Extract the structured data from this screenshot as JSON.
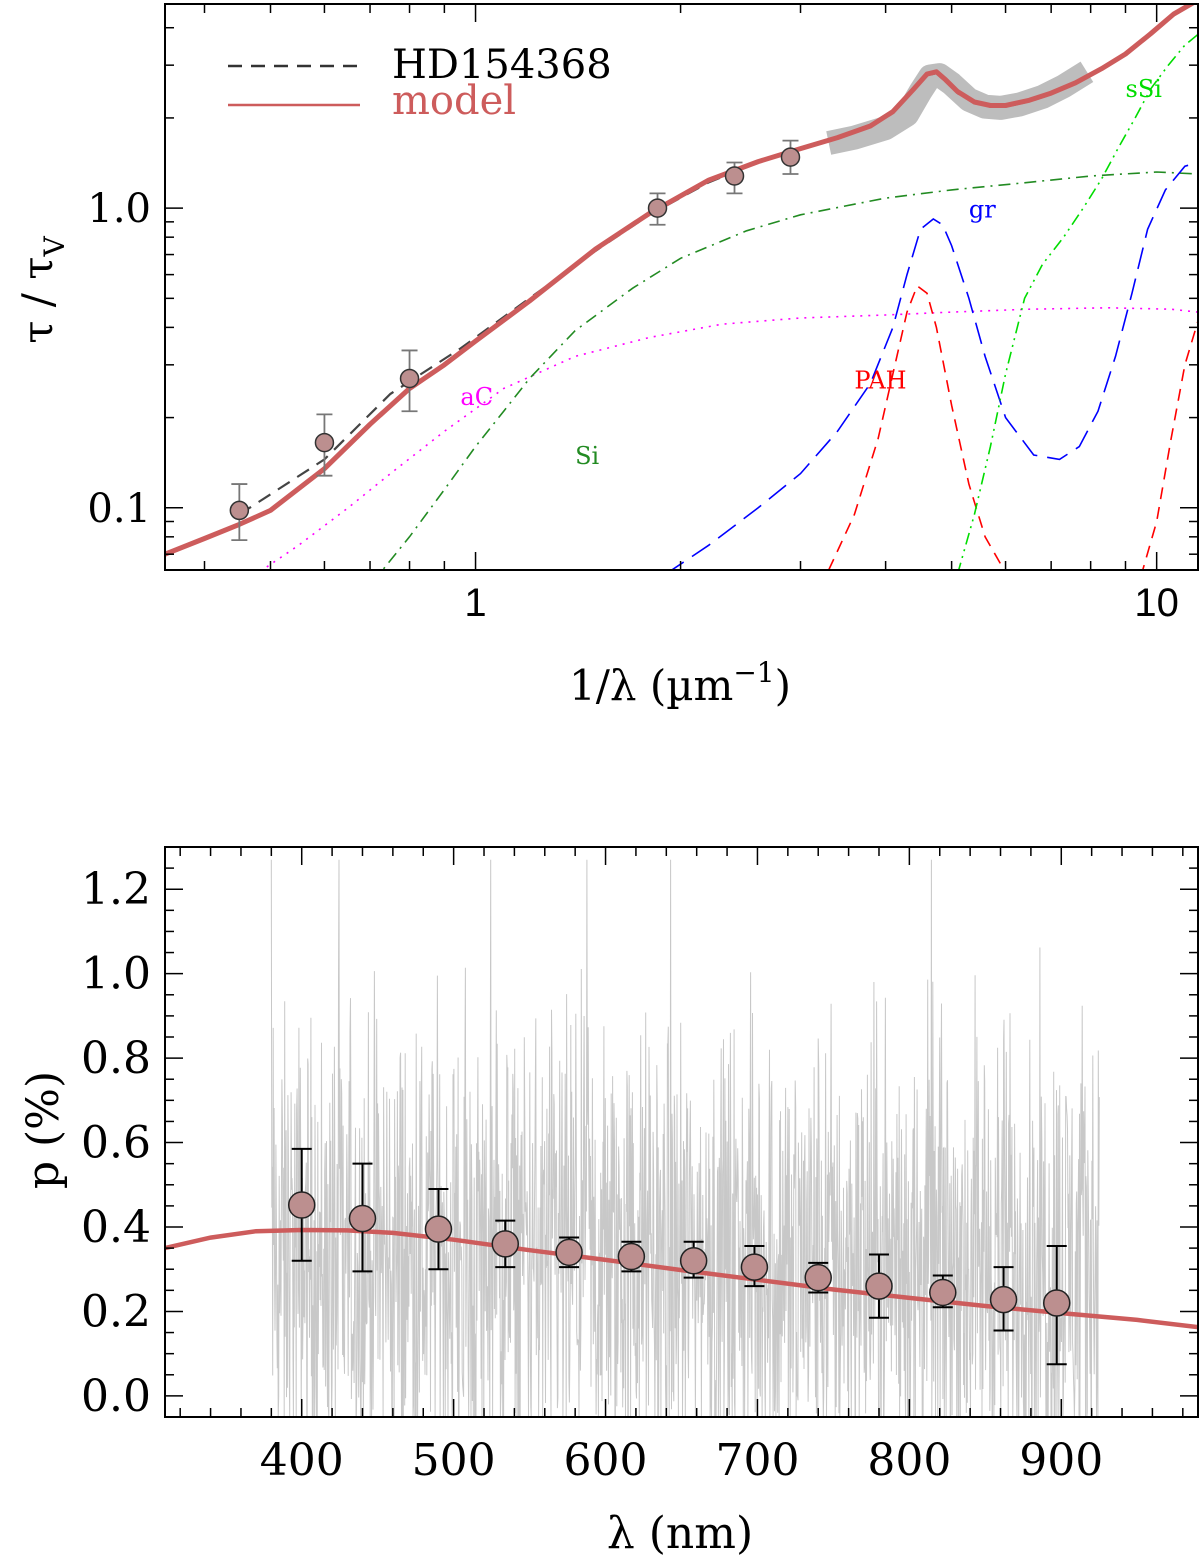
{
  "chart_data": [
    {
      "type": "line",
      "id": "extinction",
      "xscale": "log",
      "yscale": "log",
      "xlim": [
        0.35,
        11.5
      ],
      "ylim": [
        0.062,
        4.8
      ],
      "xlabel_main": "1/λ (µm",
      "xlabel_sup": "−1",
      "xlabel_end": ")",
      "ylabel_main": "τ / τ",
      "ylabel_sub": "V",
      "x_ticks": [
        {
          "value": 1,
          "label": "1"
        },
        {
          "value": 10,
          "label": "10"
        }
      ],
      "y_ticks": [
        {
          "value": 0.1,
          "label": "0.1"
        },
        {
          "value": 1.0,
          "label": "1.0"
        }
      ],
      "legend": {
        "position": "top-left",
        "entries": [
          {
            "label": "HD154368",
            "style": "dashed",
            "color": "#333333"
          },
          {
            "label": "model",
            "style": "solid",
            "color": "#cd5c5c"
          }
        ]
      },
      "observed_band": {
        "color": "#bdbdbd",
        "x": [
          3.3,
          3.6,
          4.0,
          4.3,
          4.5,
          4.65,
          4.8,
          5.0,
          5.3,
          5.6,
          5.9,
          6.3,
          6.8,
          7.3,
          7.9
        ],
        "y": [
          1.65,
          1.72,
          1.85,
          2.05,
          2.45,
          2.75,
          2.78,
          2.6,
          2.3,
          2.18,
          2.16,
          2.22,
          2.35,
          2.55,
          2.85
        ]
      },
      "observed_curve": {
        "label": "HD154368",
        "x": [
          0.45,
          0.6,
          0.75,
          0.95,
          1.2,
          1.5,
          1.8,
          2.2,
          2.6,
          3.0,
          3.4,
          3.8,
          4.1,
          4.4,
          4.6,
          4.75,
          4.9,
          5.1,
          5.4,
          5.7,
          6.0,
          6.5,
          7.0,
          7.6,
          8.3,
          9.0,
          9.8,
          10.6,
          11.5
        ],
        "y": [
          0.095,
          0.145,
          0.24,
          0.34,
          0.5,
          0.72,
          0.95,
          1.22,
          1.42,
          1.58,
          1.73,
          1.9,
          2.12,
          2.52,
          2.78,
          2.82,
          2.65,
          2.42,
          2.24,
          2.18,
          2.18,
          2.27,
          2.4,
          2.6,
          2.9,
          3.25,
          3.8,
          4.4,
          4.9
        ]
      },
      "model_curve": {
        "label": "model",
        "x": [
          0.35,
          0.4,
          0.45,
          0.5,
          0.6,
          0.7,
          0.8,
          0.9,
          1.0,
          1.2,
          1.5,
          1.8,
          2.2,
          2.6,
          3.0,
          3.4,
          3.8,
          4.1,
          4.4,
          4.6,
          4.75,
          4.9,
          5.1,
          5.4,
          5.7,
          6.0,
          6.5,
          7.0,
          7.6,
          8.3,
          9.0,
          9.8,
          10.6,
          11.5
        ],
        "y": [
          0.07,
          0.079,
          0.088,
          0.098,
          0.135,
          0.19,
          0.25,
          0.3,
          0.36,
          0.49,
          0.73,
          0.96,
          1.24,
          1.43,
          1.58,
          1.72,
          1.88,
          2.1,
          2.5,
          2.8,
          2.85,
          2.68,
          2.45,
          2.26,
          2.2,
          2.2,
          2.29,
          2.42,
          2.62,
          2.92,
          3.27,
          3.82,
          4.45,
          4.95
        ]
      },
      "data_points": {
        "x": [
          0.45,
          0.6,
          0.8,
          1.85,
          2.4,
          2.9
        ],
        "y": [
          0.098,
          0.165,
          0.27,
          1.0,
          1.28,
          1.48
        ],
        "err_low": [
          0.078,
          0.128,
          0.21,
          0.88,
          1.12,
          1.3
        ],
        "err_high": [
          0.12,
          0.205,
          0.335,
          1.12,
          1.42,
          1.68
        ]
      },
      "components": [
        {
          "name": "aC",
          "label": "aC",
          "color": "#ff00ff",
          "style": "dotted",
          "x": [
            0.35,
            0.45,
            0.55,
            0.65,
            0.75,
            0.9,
            1.1,
            1.4,
            1.8,
            2.3,
            3.0,
            4.0,
            5.0,
            6.5,
            8.5,
            10.5,
            11.5
          ],
          "y": [
            0.045,
            0.055,
            0.075,
            0.1,
            0.13,
            0.18,
            0.25,
            0.32,
            0.37,
            0.41,
            0.43,
            0.44,
            0.45,
            0.46,
            0.465,
            0.46,
            0.45
          ],
          "label_pos": [
            0.95,
            0.22
          ]
        },
        {
          "name": "Si",
          "label": "Si",
          "color": "#228b22",
          "style": "dashdot",
          "x": [
            0.6,
            0.7,
            0.8,
            0.9,
            1.0,
            1.1,
            1.2,
            1.4,
            1.7,
            2.0,
            2.5,
            3.0,
            4.0,
            5.0,
            6.5,
            8.0,
            10.0,
            11.5
          ],
          "y": [
            0.035,
            0.055,
            0.08,
            0.115,
            0.16,
            0.21,
            0.27,
            0.39,
            0.54,
            0.68,
            0.84,
            0.95,
            1.08,
            1.15,
            1.22,
            1.28,
            1.32,
            1.3
          ],
          "label_pos": [
            1.4,
            0.14
          ]
        },
        {
          "name": "gr",
          "label": "gr",
          "color": "#0000ff",
          "style": "longdash",
          "x": [
            1.9,
            2.2,
            2.6,
            3.0,
            3.4,
            3.8,
            4.1,
            4.3,
            4.5,
            4.7,
            4.85,
            5.0,
            5.3,
            5.6,
            6.0,
            6.6,
            7.2,
            7.7,
            8.2,
            8.7,
            9.2,
            9.7,
            10.3,
            11.0,
            11.5
          ],
          "y": [
            0.06,
            0.075,
            0.1,
            0.13,
            0.18,
            0.26,
            0.4,
            0.6,
            0.85,
            0.92,
            0.88,
            0.75,
            0.5,
            0.32,
            0.2,
            0.15,
            0.145,
            0.16,
            0.21,
            0.32,
            0.52,
            0.85,
            1.15,
            1.38,
            1.42
          ],
          "label_pos": [
            5.3,
            0.93
          ]
        },
        {
          "name": "PAH",
          "label": "PAH",
          "color": "#ff0000",
          "style": "dashed",
          "x": [
            3.3,
            3.6,
            3.9,
            4.1,
            4.3,
            4.45,
            4.6,
            4.75,
            5.0,
            5.3,
            5.6,
            5.9,
            6.2,
            6.5,
            7.0,
            8.0,
            9.0,
            9.5,
            10.0,
            10.5,
            11.0,
            11.5
          ],
          "y": [
            0.062,
            0.095,
            0.17,
            0.28,
            0.45,
            0.55,
            0.52,
            0.4,
            0.22,
            0.12,
            0.08,
            0.065,
            0.055,
            0.05,
            0.05,
            0.05,
            0.05,
            0.06,
            0.09,
            0.17,
            0.3,
            0.42
          ],
          "label_pos": [
            3.6,
            0.25
          ]
        },
        {
          "name": "sSi",
          "label": "sSi",
          "color": "#00dd00",
          "style": "dashdotdot",
          "x": [
            5.1,
            5.4,
            5.7,
            6.0,
            6.4,
            6.8,
            7.3,
            7.8,
            8.3,
            8.8,
            9.3,
            9.8,
            10.4,
            11.0,
            11.5
          ],
          "y": [
            0.06,
            0.095,
            0.16,
            0.28,
            0.5,
            0.65,
            0.8,
            1.0,
            1.25,
            1.6,
            2.0,
            2.5,
            3.0,
            3.5,
            3.8
          ],
          "label_pos": [
            9.0,
            2.35
          ]
        }
      ]
    },
    {
      "type": "scatter",
      "id": "polarization",
      "xlim": [
        310,
        990
      ],
      "ylim": [
        -0.05,
        1.3
      ],
      "xlabel": "λ   (nm)",
      "ylabel": "p (%)",
      "x_ticks": [
        {
          "value": 400,
          "label": "400"
        },
        {
          "value": 500,
          "label": "500"
        },
        {
          "value": 600,
          "label": "600"
        },
        {
          "value": 700,
          "label": "700"
        },
        {
          "value": 800,
          "label": "800"
        },
        {
          "value": 900,
          "label": "900"
        }
      ],
      "y_ticks": [
        {
          "value": 0.0,
          "label": "0.0"
        },
        {
          "value": 0.2,
          "label": "0.2"
        },
        {
          "value": 0.4,
          "label": "0.4"
        },
        {
          "value": 0.6,
          "label": "0.6"
        },
        {
          "value": 0.8,
          "label": "0.8"
        },
        {
          "value": 1.0,
          "label": "1.0"
        },
        {
          "value": 1.2,
          "label": "1.2"
        }
      ],
      "spectrum_noise": {
        "color": "#c8c8c8",
        "x_range": [
          380,
          925
        ],
        "mean": 0.32,
        "spread": 0.75,
        "min": -0.05,
        "max": 1.3
      },
      "model_curve": {
        "x": [
          310,
          340,
          370,
          400,
          430,
          460,
          500,
          550,
          600,
          650,
          700,
          750,
          800,
          850,
          900,
          950,
          990
        ],
        "y": [
          0.35,
          0.375,
          0.39,
          0.393,
          0.392,
          0.386,
          0.37,
          0.345,
          0.322,
          0.298,
          0.275,
          0.252,
          0.232,
          0.213,
          0.196,
          0.18,
          0.163
        ]
      },
      "data_points": {
        "x": [
          400,
          440,
          490,
          534,
          576,
          617,
          658,
          698,
          740,
          780,
          822,
          862,
          897
        ],
        "y": [
          0.452,
          0.42,
          0.395,
          0.36,
          0.34,
          0.33,
          0.32,
          0.305,
          0.28,
          0.26,
          0.245,
          0.228,
          0.22
        ],
        "err_low": [
          0.32,
          0.295,
          0.3,
          0.305,
          0.305,
          0.295,
          0.28,
          0.26,
          0.245,
          0.185,
          0.21,
          0.155,
          0.075
        ],
        "err_high": [
          0.585,
          0.55,
          0.49,
          0.415,
          0.375,
          0.365,
          0.365,
          0.355,
          0.315,
          0.335,
          0.285,
          0.305,
          0.355
        ]
      }
    }
  ]
}
